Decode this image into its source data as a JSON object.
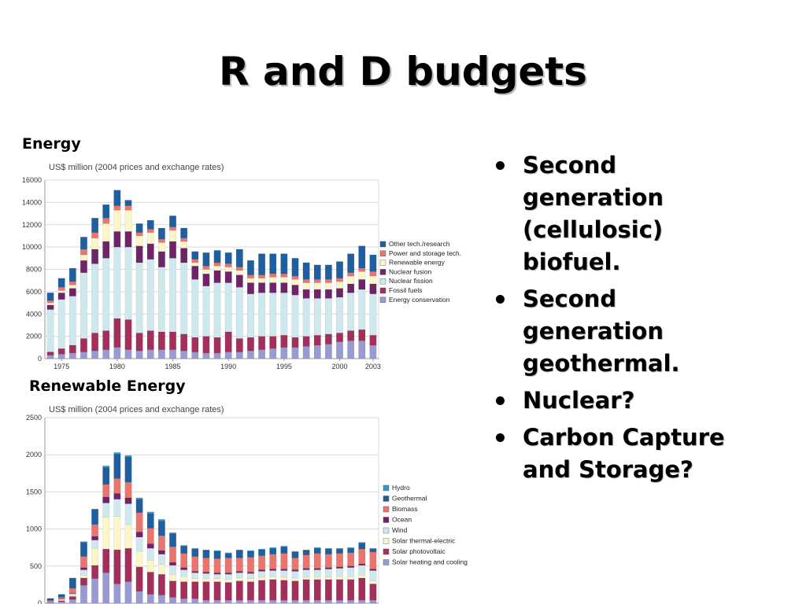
{
  "slide": {
    "title": "R and D budgets",
    "bullets": [
      "Second generation (cellulosic) biofuel.",
      "Second generation geothermal.",
      "Nuclear?",
      "Carbon Capture and Storage?"
    ]
  },
  "colors": {
    "Other tech./research": "#1f5fa0",
    "Power and storage tech.": "#e8756e",
    "Renewable energy": "#fbf6c8",
    "Nuclear fusion": "#702468",
    "Nuclear fission": "#cfe8ee",
    "Fossil fuels": "#a2305a",
    "Energy conservation": "#9a9ad3",
    "Hydro": "#2a9fc6",
    "Geothermal": "#1f5fa0",
    "Biomass": "#e8756e",
    "Ocean": "#702468",
    "Wind": "#cfe8ee",
    "Solar thermal-electric": "#fbf6c8",
    "Solar photovoltaic": "#a2305a",
    "Solar heating and cooling": "#9a9ad3"
  },
  "chart_data": [
    {
      "type": "bar",
      "stacked": true,
      "label": "Energy",
      "title": "US$ million (2004 prices and exchange rates)",
      "ylim": [
        0,
        16000
      ],
      "yticks": [
        0,
        2000,
        4000,
        6000,
        8000,
        10000,
        12000,
        14000,
        16000
      ],
      "x": [
        1974,
        1975,
        1976,
        1977,
        1978,
        1979,
        1980,
        1981,
        1982,
        1983,
        1984,
        1985,
        1986,
        1987,
        1988,
        1989,
        1990,
        1991,
        1992,
        1993,
        1994,
        1995,
        1996,
        1997,
        1998,
        1999,
        2000,
        2001,
        2002,
        2003
      ],
      "xtick_labels": [
        "1975",
        "1980",
        "1985",
        "1990",
        "1995",
        "2000",
        "2003"
      ],
      "xtick_values": [
        1975,
        1980,
        1985,
        1990,
        1995,
        2000,
        2003
      ],
      "legend_placement": "right",
      "series": [
        {
          "name": "Energy conservation",
          "values": [
            300,
            400,
            500,
            600,
            700,
            800,
            1000,
            800,
            700,
            800,
            800,
            800,
            700,
            600,
            500,
            500,
            600,
            600,
            700,
            800,
            900,
            1000,
            1000,
            1100,
            1200,
            1300,
            1500,
            1600,
            1600,
            1200
          ]
        },
        {
          "name": "Fossil fuels",
          "values": [
            300,
            500,
            700,
            1200,
            1600,
            1700,
            2600,
            2700,
            1600,
            1700,
            1600,
            1600,
            1500,
            1300,
            1500,
            1400,
            1800,
            1200,
            1200,
            1200,
            1100,
            1100,
            900,
            900,
            900,
            900,
            800,
            900,
            1000,
            900
          ]
        },
        {
          "name": "Nuclear fission",
          "values": [
            3800,
            4400,
            4400,
            5900,
            6200,
            6500,
            6400,
            6500,
            6300,
            6400,
            5800,
            6600,
            6400,
            5200,
            4500,
            4900,
            4400,
            4600,
            3900,
            3900,
            3900,
            3800,
            3800,
            3400,
            3300,
            3200,
            3200,
            3400,
            3600,
            3700
          ]
        },
        {
          "name": "Nuclear fusion",
          "values": [
            400,
            600,
            700,
            1100,
            1300,
            1500,
            1400,
            1400,
            1500,
            1400,
            1400,
            1500,
            1300,
            1200,
            1100,
            1100,
            1000,
            1100,
            1000,
            900,
            900,
            900,
            900,
            800,
            800,
            800,
            800,
            800,
            900,
            900
          ]
        },
        {
          "name": "Renewable energy",
          "values": [
            200,
            200,
            300,
            500,
            1000,
            1600,
            1900,
            1900,
            900,
            1000,
            800,
            1000,
            600,
            300,
            400,
            400,
            400,
            400,
            400,
            400,
            500,
            500,
            500,
            600,
            600,
            600,
            600,
            700,
            700,
            700
          ]
        },
        {
          "name": "Power and storage tech.",
          "values": [
            200,
            300,
            300,
            500,
            500,
            500,
            400,
            400,
            300,
            300,
            300,
            300,
            300,
            300,
            300,
            300,
            300,
            300,
            300,
            300,
            300,
            300,
            300,
            300,
            300,
            300,
            300,
            300,
            300,
            400
          ]
        },
        {
          "name": "Other tech./research",
          "values": [
            700,
            800,
            1200,
            1100,
            1300,
            1200,
            1400,
            500,
            800,
            800,
            1000,
            1000,
            900,
            700,
            1200,
            1100,
            1000,
            1600,
            1300,
            1900,
            1800,
            1800,
            1600,
            1500,
            1300,
            1300,
            1500,
            1700,
            2000,
            1500
          ]
        }
      ]
    },
    {
      "type": "bar",
      "stacked": true,
      "label": "Renewable Energy",
      "title": "US$ million (2004 prices and exchange rates)",
      "ylim": [
        0,
        2500
      ],
      "yticks": [
        0,
        500,
        1000,
        1500,
        2000,
        2500
      ],
      "x": [
        1974,
        1975,
        1976,
        1977,
        1978,
        1979,
        1980,
        1981,
        1982,
        1983,
        1984,
        1985,
        1986,
        1987,
        1988,
        1989,
        1990,
        1991,
        1992,
        1993,
        1994,
        1995,
        1996,
        1997,
        1998,
        1999,
        2000,
        2001,
        2002,
        2003
      ],
      "legend_placement": "right",
      "series": [
        {
          "name": "Solar heating and cooling",
          "values": [
            10,
            20,
            50,
            240,
            330,
            410,
            260,
            290,
            160,
            120,
            110,
            80,
            60,
            60,
            40,
            40,
            40,
            40,
            40,
            40,
            40,
            40,
            40,
            40,
            40,
            40,
            40,
            40,
            40,
            40
          ]
        },
        {
          "name": "Solar photovoltaic",
          "values": [
            5,
            15,
            40,
            100,
            180,
            320,
            460,
            450,
            330,
            300,
            280,
            220,
            230,
            230,
            250,
            250,
            240,
            260,
            250,
            270,
            280,
            270,
            260,
            280,
            280,
            280,
            280,
            280,
            300,
            220
          ]
        },
        {
          "name": "Solar thermal-electric",
          "values": [
            5,
            10,
            20,
            40,
            230,
            430,
            450,
            320,
            210,
            160,
            130,
            90,
            70,
            40,
            40,
            40,
            40,
            40,
            40,
            40,
            40,
            40,
            40,
            30,
            30,
            30,
            40,
            40,
            40,
            40
          ]
        },
        {
          "name": "Wind",
          "values": [
            5,
            10,
            20,
            70,
            110,
            190,
            230,
            280,
            190,
            160,
            140,
            120,
            90,
            80,
            70,
            60,
            70,
            70,
            70,
            80,
            80,
            90,
            90,
            100,
            100,
            110,
            110,
            120,
            130,
            140
          ]
        },
        {
          "name": "Ocean",
          "values": [
            0,
            5,
            10,
            30,
            50,
            80,
            80,
            80,
            70,
            60,
            50,
            40,
            30,
            20,
            20,
            20,
            20,
            20,
            20,
            20,
            20,
            20,
            20,
            20,
            20,
            20,
            20,
            20,
            20,
            20
          ]
        },
        {
          "name": "Biomass",
          "values": [
            10,
            20,
            60,
            150,
            160,
            170,
            200,
            210,
            260,
            210,
            200,
            210,
            190,
            200,
            190,
            190,
            200,
            180,
            200,
            190,
            200,
            210,
            160,
            180,
            200,
            180,
            180,
            180,
            200,
            230
          ]
        },
        {
          "name": "Geothermal",
          "values": [
            30,
            40,
            140,
            190,
            200,
            230,
            330,
            340,
            180,
            200,
            200,
            180,
            100,
            100,
            100,
            100,
            60,
            100,
            80,
            80,
            80,
            90,
            80,
            60,
            70,
            70,
            60,
            60,
            80,
            40
          ]
        },
        {
          "name": "Hydro",
          "values": [
            0,
            0,
            0,
            10,
            10,
            20,
            20,
            20,
            20,
            20,
            20,
            10,
            10,
            10,
            10,
            10,
            10,
            10,
            10,
            10,
            10,
            10,
            10,
            10,
            10,
            10,
            10,
            10,
            10,
            10
          ]
        }
      ]
    }
  ]
}
